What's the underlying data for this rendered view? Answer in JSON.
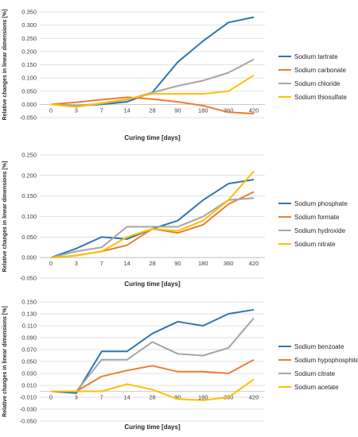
{
  "chart_data": [
    {
      "type": "line",
      "categories": [
        "0",
        "3",
        "7",
        "14",
        "28",
        "90",
        "180",
        "360",
        "420"
      ],
      "xlabel": "Curing time [days]",
      "ylabel": "Relative changes in linear dimensions [%]",
      "ylim": [
        -0.05,
        0.35
      ],
      "yticks": [
        "-0.050",
        "0.000",
        "0.050",
        "0.100",
        "0.150",
        "0.200",
        "0.250",
        "0.300",
        "0.350"
      ],
      "grid": true,
      "legend": "right",
      "series": [
        {
          "name": "Sodium tartrate",
          "color": "#2e75b6",
          "values": [
            0.0,
            -0.005,
            0.0,
            0.01,
            0.045,
            0.16,
            0.24,
            0.31,
            0.33
          ]
        },
        {
          "name": "Sodium carbonate",
          "color": "#ed7d31",
          "values": [
            0.0,
            0.008,
            0.018,
            0.027,
            0.02,
            0.01,
            -0.005,
            -0.03,
            -0.035
          ]
        },
        {
          "name": "Sodium chloride",
          "color": "#a5a5a5",
          "values": [
            0.0,
            -0.005,
            0.003,
            0.018,
            0.045,
            0.07,
            0.09,
            0.12,
            0.17
          ]
        },
        {
          "name": "Sodium thiosulfate",
          "color": "#ffc000",
          "values": [
            0.0,
            -0.01,
            0.005,
            0.02,
            0.04,
            0.04,
            0.04,
            0.05,
            0.11
          ]
        }
      ]
    },
    {
      "type": "line",
      "categories": [
        "0",
        "3",
        "7",
        "14",
        "28",
        "90",
        "180",
        "360",
        "420"
      ],
      "xlabel": "Curing time [days]",
      "ylabel": "Relative changes in linear dimensions [%]",
      "ylim": [
        -0.05,
        0.25
      ],
      "yticks": [
        "-0.050",
        "0.000",
        "0.050",
        "0.100",
        "0.150",
        "0.200",
        "0.250"
      ],
      "grid": true,
      "legend": "right",
      "series": [
        {
          "name": "Sodium phosphate",
          "color": "#2e75b6",
          "values": [
            0.0,
            0.022,
            0.05,
            0.045,
            0.07,
            0.09,
            0.14,
            0.18,
            0.19
          ]
        },
        {
          "name": "Sodium formate",
          "color": "#ed7d31",
          "values": [
            0.0,
            0.005,
            0.015,
            0.03,
            0.07,
            0.06,
            0.08,
            0.13,
            0.16
          ]
        },
        {
          "name": "Sodium hydroxide",
          "color": "#a5a5a5",
          "values": [
            0.0,
            0.015,
            0.025,
            0.075,
            0.075,
            0.075,
            0.1,
            0.14,
            0.145
          ]
        },
        {
          "name": "Sodium nitrate",
          "color": "#ffc000",
          "values": [
            0.0,
            0.005,
            0.015,
            0.05,
            0.07,
            0.065,
            0.09,
            0.14,
            0.21
          ]
        }
      ]
    },
    {
      "type": "line",
      "categories": [
        "0",
        "3",
        "7",
        "14",
        "28",
        "90",
        "180",
        "360",
        "420"
      ],
      "xlabel": "Curing time [days]",
      "ylabel": "Relative changes in linear dimensions [%]",
      "ylim": [
        -0.05,
        0.15
      ],
      "yticks": [
        "-0.050",
        "-0.030",
        "-0.010",
        "0.010",
        "0.030",
        "0.050",
        "0.070",
        "0.090",
        "0.110",
        "0.130",
        "0.150"
      ],
      "grid": true,
      "legend": "right",
      "series": [
        {
          "name": "Sodium benzoate",
          "color": "#2e75b6",
          "values": [
            0.0,
            -0.003,
            0.067,
            0.067,
            0.097,
            0.117,
            0.11,
            0.13,
            0.137
          ]
        },
        {
          "name": "Sodium hypophosphite",
          "color": "#ed7d31",
          "values": [
            0.0,
            0.0,
            0.025,
            0.035,
            0.043,
            0.033,
            0.033,
            0.03,
            0.053
          ]
        },
        {
          "name": "Sodium citrate",
          "color": "#a5a5a5",
          "values": [
            0.0,
            0.0,
            0.053,
            0.053,
            0.083,
            0.063,
            0.06,
            0.073,
            0.123
          ]
        },
        {
          "name": "Sodium acetate",
          "color": "#ffc000",
          "values": [
            0.0,
            0.0,
            0.0,
            0.012,
            0.003,
            -0.013,
            -0.015,
            -0.01,
            0.02
          ]
        }
      ]
    }
  ]
}
